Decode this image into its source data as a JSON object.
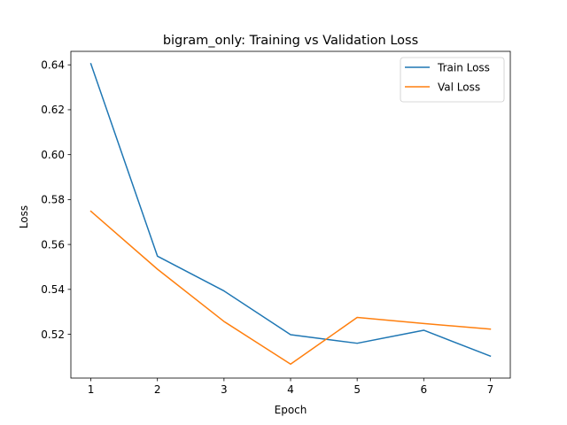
{
  "chart_data": {
    "type": "line",
    "title": "bigram_only: Training vs Validation Loss",
    "xlabel": "Epoch",
    "ylabel": "Loss",
    "x": [
      1,
      2,
      3,
      4,
      5,
      6,
      7
    ],
    "xticks": [
      "1",
      "2",
      "3",
      "4",
      "5",
      "6",
      "7"
    ],
    "yticks": [
      "0.52",
      "0.54",
      "0.56",
      "0.58",
      "0.60",
      "0.62",
      "0.64"
    ],
    "xlim": [
      0.7,
      7.3
    ],
    "ylim": [
      0.5005,
      0.646
    ],
    "grid": false,
    "legend_position": "top-right",
    "series": [
      {
        "name": "Train Loss",
        "color": "#1f77b4",
        "values": [
          0.6405,
          0.5548,
          0.5393,
          0.5198,
          0.516,
          0.5218,
          0.5103
        ]
      },
      {
        "name": "Val Loss",
        "color": "#ff7f0e",
        "values": [
          0.5748,
          0.549,
          0.5257,
          0.5067,
          0.5275,
          0.5248,
          0.5223
        ]
      }
    ]
  }
}
